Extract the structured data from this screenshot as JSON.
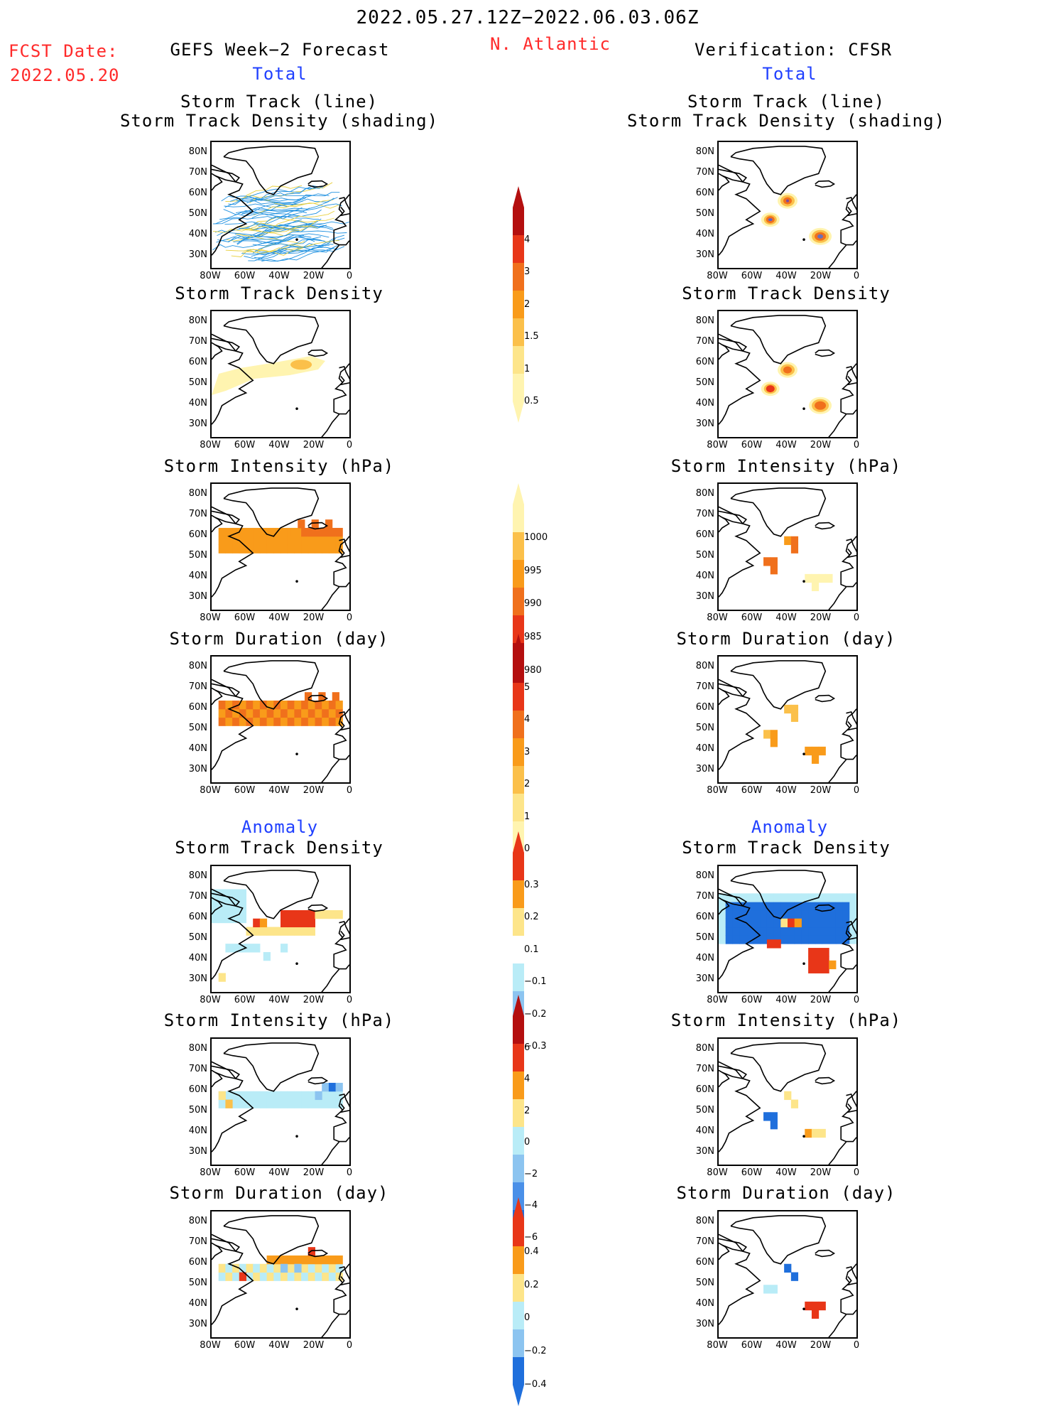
{
  "header": {
    "date_range": "2022.05.27.12Z−2022.06.03.06Z",
    "region": "N. Atlantic",
    "fcst_label": "FCST Date:",
    "fcst_date": "2022.05.20",
    "left_title": "GEFS Week−2 Forecast",
    "right_title": "Verification: CFSR",
    "total_label": "Total",
    "anomaly_label": "Anomaly"
  },
  "panel_titles": {
    "track_line": "Storm Track (line)",
    "track_shading": "Storm Track Density (shading)",
    "density": "Storm Track Density",
    "intensity": "Storm Intensity (hPa)",
    "duration": "Storm Duration (day)"
  },
  "axes": {
    "lat_labels": [
      "80N",
      "70N",
      "60N",
      "50N",
      "40N",
      "30N"
    ],
    "lon_labels": [
      "80W",
      "60W",
      "40W",
      "20W",
      "0"
    ]
  },
  "colorbars": {
    "density_total": [
      "4",
      "3",
      "2",
      "1.5",
      "1",
      "0.5"
    ],
    "intensity_total": [
      "1000",
      "995",
      "990",
      "985",
      "980"
    ],
    "duration_total": [
      "5",
      "4",
      "3",
      "2",
      "1",
      "0"
    ],
    "density_anom": [
      "0.3",
      "0.2",
      "0.1",
      "−0.1",
      "−0.2",
      "−0.3"
    ],
    "intensity_anom": [
      "6",
      "4",
      "2",
      "0",
      "−2",
      "−4",
      "−6"
    ],
    "duration_anom": [
      "0.4",
      "0.2",
      "0",
      "−0.2",
      "−0.4"
    ]
  },
  "colors": {
    "header_red": "#ff2a2a",
    "header_blue": "#2040ff",
    "track_blue": "#1e90e0",
    "track_yellow": "#e8d040"
  }
}
